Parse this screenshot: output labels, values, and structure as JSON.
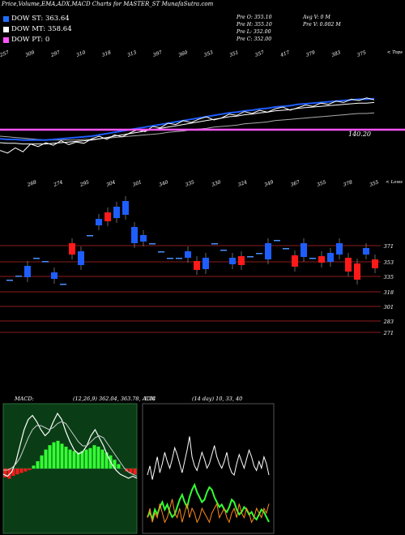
{
  "header": {
    "title": "Price,Volume,EMA,ADX,MACD Charts for MASTER_ST MunafaSutra.com"
  },
  "legend": [
    {
      "label": "DOW ST: 363.64",
      "color": "#1e6fff"
    },
    {
      "label": "DOW MT: 358.64",
      "color": "#ffffff"
    },
    {
      "label": "DOW PT: 0",
      "color": "#ff55ff"
    }
  ],
  "quote": {
    "open": "Pre O: 355.10",
    "high": "Pre H: 355.10",
    "low": "Pre L: 352.00",
    "close": "Pre C: 352.00",
    "avg_vol": "Avg V: 0 M",
    "pre_vol": "Pre V: 0.002 M"
  },
  "top_panel": {
    "corner_label": "< Tops",
    "price_label": "140.20",
    "top_numbers": [
      "257",
      "309",
      "297",
      "310",
      "318",
      "313",
      "397",
      "360",
      "353",
      "351",
      "357",
      "417",
      "379",
      "383",
      "375"
    ]
  },
  "mid_panel": {
    "corner_label": "< Lows",
    "low_numbers": [
      "268",
      "274",
      "295",
      "304",
      "301",
      "340",
      "335",
      "330",
      "324",
      "349",
      "367",
      "355",
      "378",
      "355"
    ],
    "levels": [
      "371",
      "353",
      "335",
      "318",
      "301",
      "283",
      "271"
    ]
  },
  "bottom": {
    "macd_label": "MACD:",
    "macd_values": "(12,26,9) 362.04, 363.78, -1.74",
    "adx_label": "ADX",
    "adx_values": "(14 day) 10, 33, 40"
  },
  "colors": {
    "up": "#1e5eff",
    "down": "#ff1a1a",
    "level": "#8b1c1c",
    "pt": "#ff55ff",
    "macd_bg": "#0a3d16",
    "hist": "#33ff33"
  },
  "chart_data": [
    {
      "type": "line",
      "name": "price-ema-panel",
      "series": [
        {
          "name": "price",
          "values": [
            18,
            14,
            22,
            16,
            28,
            24,
            30,
            26,
            33,
            27,
            31,
            29,
            36,
            40,
            35,
            42,
            39,
            45,
            50,
            47,
            55,
            53,
            60,
            58,
            64,
            61,
            66,
            70,
            65,
            68,
            74,
            72,
            78,
            75,
            80,
            77,
            82,
            85,
            80,
            84,
            88,
            86,
            91,
            89,
            94,
            92,
            97,
            95,
            99,
            96
          ]
        },
        {
          "name": "ema-fast",
          "values": [
            30,
            29,
            29,
            28,
            28,
            28,
            28,
            29,
            30,
            31,
            32,
            33,
            34,
            36,
            38,
            40,
            42,
            44,
            46,
            48,
            50,
            52,
            54,
            56,
            58,
            60,
            62,
            64,
            66,
            68,
            70,
            71,
            73,
            74,
            76,
            77,
            79,
            80,
            81,
            83,
            84,
            85,
            86,
            87,
            88,
            89,
            90,
            91,
            91,
            92
          ]
        },
        {
          "name": "ema-slow",
          "values": [
            40,
            39,
            38,
            37,
            36,
            35,
            34,
            34,
            34,
            34,
            34,
            35,
            35,
            36,
            37,
            38,
            39,
            40,
            41,
            42,
            43,
            44,
            46,
            47,
            48,
            50,
            51,
            52,
            54,
            55,
            56,
            57,
            59,
            60,
            61,
            62,
            64,
            65,
            66,
            67,
            68,
            69,
            70,
            71,
            72,
            73,
            74,
            75,
            75,
            76
          ]
        }
      ],
      "reference_line": 140.2
    },
    {
      "type": "bar",
      "name": "candles",
      "series": [
        {
          "name": "up-down",
          "values": [
            0,
            0,
            1,
            0,
            0,
            1,
            0,
            -1,
            1,
            0,
            1,
            -1,
            1,
            1,
            1,
            1,
            0,
            0,
            0,
            0,
            1,
            -1,
            1,
            0,
            0,
            1,
            -1,
            0,
            0,
            1,
            0,
            0,
            -1,
            1,
            0,
            -1,
            1,
            1,
            -1,
            -1,
            1,
            -1
          ]
        }
      ]
    },
    {
      "type": "bar",
      "name": "macd",
      "series": [
        {
          "name": "histogram",
          "values": [
            -0.6,
            -0.7,
            -0.5,
            -0.4,
            -0.3,
            -0.2,
            -0.1,
            0.2,
            0.5,
            0.9,
            1.3,
            1.6,
            1.8,
            1.9,
            1.7,
            1.5,
            1.3,
            1.2,
            1.1,
            1.2,
            1.3,
            1.4,
            1.6,
            1.5,
            1.3,
            1.1,
            0.9,
            0.6,
            0.3,
            0.0,
            -0.2,
            -0.3,
            -0.4
          ]
        },
        {
          "name": "macd-line",
          "values": [
            0.2,
            0.1,
            0.3,
            0.8,
            1.6,
            2.4,
            2.9,
            3.1,
            2.8,
            2.4,
            2.1,
            2.3,
            2.8,
            3.2,
            2.9,
            2.3,
            1.8,
            1.4,
            1.2,
            1.3,
            1.6,
            2.1,
            2.4,
            2.0,
            1.6,
            1.1,
            0.7,
            0.4,
            0.2,
            0.1,
            0.0,
            0.1,
            0.0
          ]
        },
        {
          "name": "signal-line",
          "values": [
            0.4,
            0.4,
            0.5,
            0.7,
            1.0,
            1.5,
            2.0,
            2.4,
            2.6,
            2.6,
            2.5,
            2.4,
            2.5,
            2.7,
            2.8,
            2.7,
            2.4,
            2.1,
            1.8,
            1.6,
            1.6,
            1.8,
            2.0,
            2.1,
            2.0,
            1.7,
            1.4,
            1.1,
            0.8,
            0.5,
            0.3,
            0.2,
            0.1
          ]
        }
      ]
    },
    {
      "type": "line",
      "name": "adx",
      "series": [
        {
          "name": "adx",
          "values": [
            30,
            34,
            28,
            33,
            38,
            31,
            35,
            40,
            36,
            33,
            37,
            42,
            39,
            35,
            31,
            36,
            41,
            47,
            38,
            34,
            32,
            36,
            40,
            37,
            33,
            35,
            39,
            43,
            38,
            35,
            33,
            36,
            40,
            34,
            31,
            30,
            35,
            39,
            36,
            33,
            37,
            41,
            38,
            34,
            32,
            36,
            33,
            38,
            35,
            30
          ]
        },
        {
          "name": "plus-di",
          "values": [
            10,
            12,
            9,
            11,
            10,
            13,
            11,
            9,
            10,
            12,
            14,
            11,
            10,
            12,
            9,
            11,
            13,
            10,
            12,
            11,
            9,
            10,
            12,
            11,
            10,
            9,
            11,
            12,
            13,
            10,
            11,
            12,
            10,
            9,
            11,
            12,
            10,
            13,
            11,
            10,
            12,
            11,
            9,
            10,
            12,
            11,
            10,
            12,
            11,
            13
          ]
        },
        {
          "name": "minus-di",
          "values": [
            14,
            16,
            13,
            17,
            15,
            18,
            20,
            17,
            19,
            16,
            14,
            15,
            18,
            21,
            23,
            20,
            18,
            22,
            25,
            27,
            24,
            22,
            20,
            21,
            24,
            26,
            25,
            22,
            20,
            18,
            19,
            17,
            16,
            18,
            21,
            20,
            17,
            15,
            16,
            18,
            17,
            15,
            16,
            14,
            13,
            15,
            17,
            16,
            14,
            12
          ]
        }
      ]
    }
  ]
}
